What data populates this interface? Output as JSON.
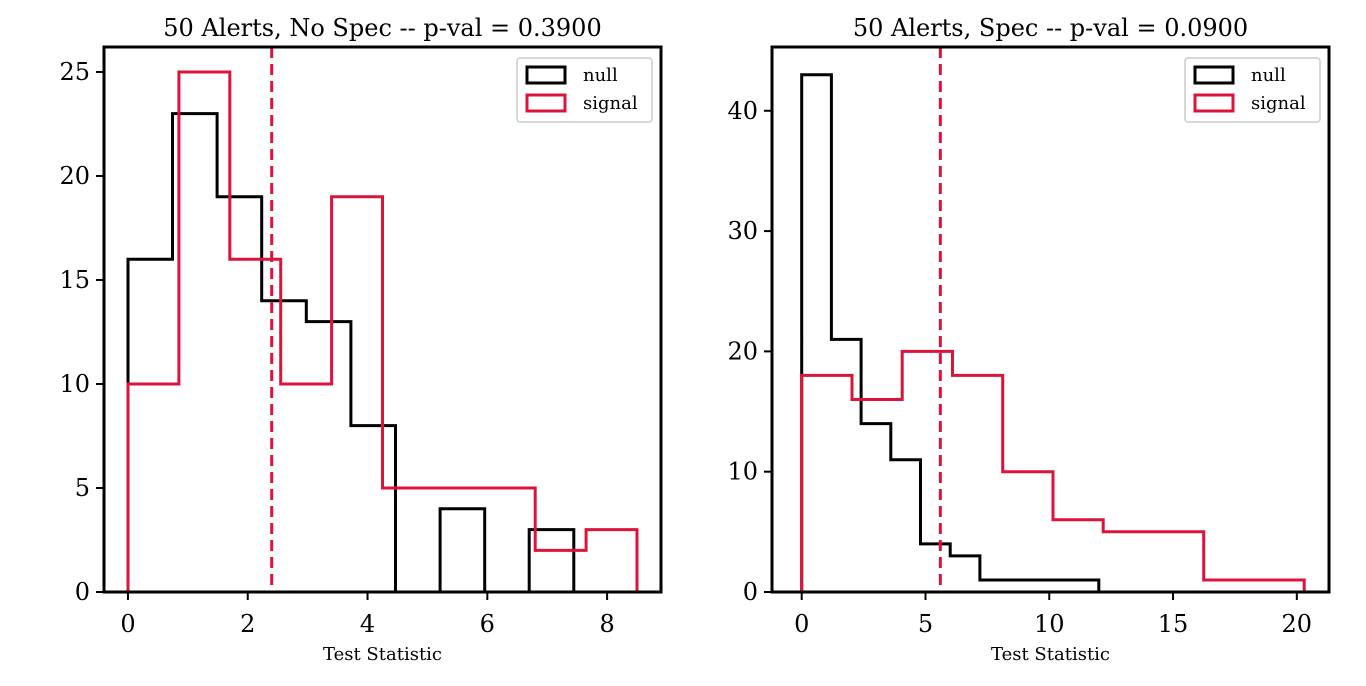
{
  "chart_data": [
    {
      "type": "histogram",
      "title": "50 Alerts, No Spec -- p-val = 0.3900",
      "xlabel": "Test Statistic",
      "ylabel": "",
      "xlim": [
        -0.4,
        8.9
      ],
      "ylim": [
        0,
        26.2
      ],
      "xticks": [
        0,
        2,
        4,
        6,
        8
      ],
      "yticks": [
        0,
        5,
        10,
        15,
        20,
        25
      ],
      "legend_position": "top-right",
      "threshold": 2.4,
      "series": [
        {
          "name": "null",
          "color": "#000000",
          "bin_edges": [
            0.0,
            0.744,
            1.489,
            2.233,
            2.978,
            3.722,
            4.467,
            5.211,
            5.956,
            6.7,
            7.444
          ],
          "counts": [
            16,
            23,
            19,
            14,
            13,
            8,
            0,
            4,
            0,
            3
          ]
        },
        {
          "name": "signal",
          "color": "#dc143c",
          "bin_edges": [
            0.0,
            0.85,
            1.7,
            2.55,
            3.4,
            4.25,
            5.1,
            5.95,
            6.8,
            7.65,
            8.5
          ],
          "counts": [
            10,
            25,
            16,
            10,
            19,
            5,
            5,
            5,
            2,
            3
          ]
        }
      ]
    },
    {
      "type": "histogram",
      "title": "50 Alerts, Spec -- p-val = 0.0900",
      "xlabel": "Test Statistic",
      "ylabel": "",
      "xlim": [
        -1.2,
        21.3
      ],
      "ylim": [
        0,
        45.3
      ],
      "xticks": [
        0,
        5,
        10,
        15,
        20
      ],
      "yticks": [
        0,
        10,
        20,
        30,
        40
      ],
      "legend_position": "top-right",
      "threshold": 5.6,
      "series": [
        {
          "name": "null",
          "color": "#000000",
          "bin_edges": [
            0.0,
            1.2,
            2.4,
            3.6,
            4.8,
            6.0,
            7.2,
            8.4,
            9.6,
            10.8,
            12.0
          ],
          "counts": [
            43,
            21,
            14,
            11,
            4,
            3,
            1,
            1,
            1,
            1
          ]
        },
        {
          "name": "signal",
          "color": "#dc143c",
          "bin_edges": [
            0.0,
            2.03,
            4.06,
            6.09,
            8.12,
            10.15,
            12.18,
            14.21,
            16.24,
            18.27,
            20.3
          ],
          "counts": [
            18,
            16,
            20,
            18,
            10,
            6,
            5,
            5,
            1,
            1
          ]
        }
      ]
    }
  ]
}
